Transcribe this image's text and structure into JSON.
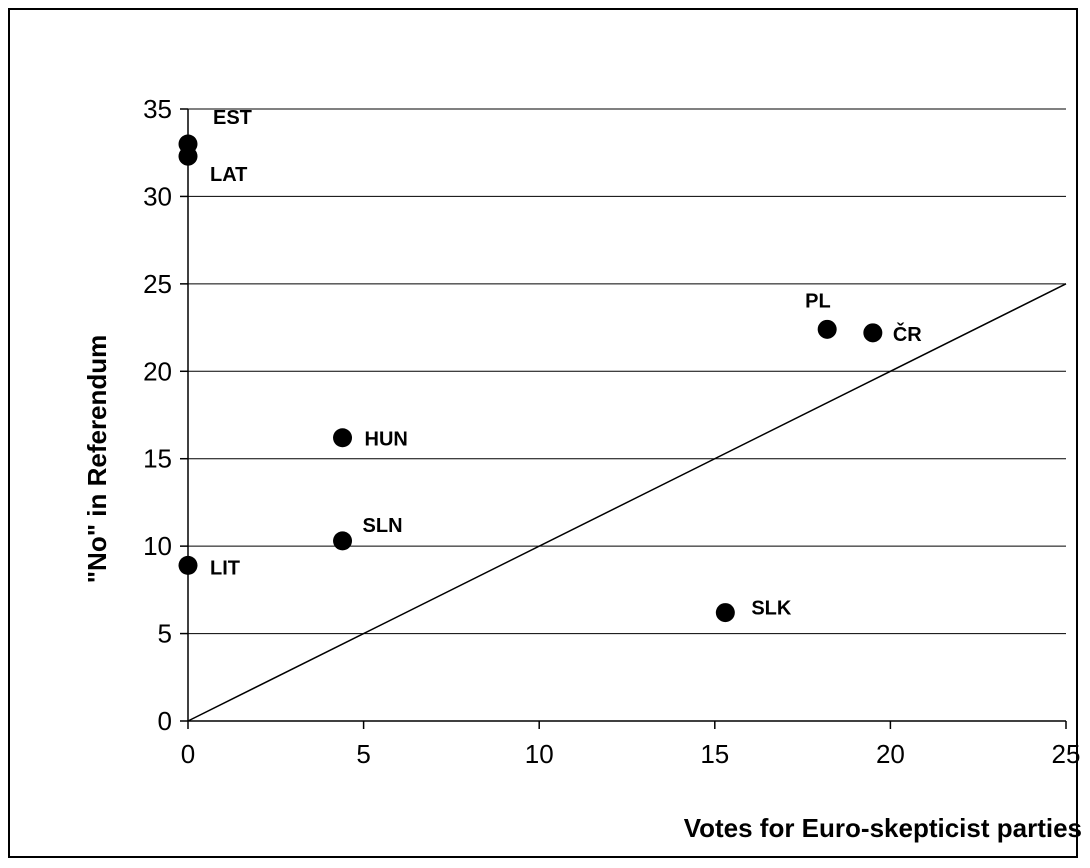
{
  "chart_data": {
    "type": "scatter",
    "title": "",
    "xlabel": "Votes for Euro-skepticist parties",
    "ylabel": "\"No\" in Referendum",
    "xlim": [
      0,
      25
    ],
    "ylim": [
      0,
      35
    ],
    "x_ticks": [
      "0",
      "5",
      "10",
      "15",
      "20",
      "25"
    ],
    "y_ticks": [
      "0",
      "5",
      "10",
      "15",
      "20",
      "25",
      "30",
      "35"
    ],
    "grid": "horizontal",
    "reference_line": {
      "from": [
        0,
        0
      ],
      "to": [
        25,
        25
      ]
    },
    "marker_color": "#000000",
    "points": [
      {
        "label": "EST",
        "x": 0,
        "y": 33.0
      },
      {
        "label": "LAT",
        "x": 0,
        "y": 32.3
      },
      {
        "label": "LIT",
        "x": 0,
        "y": 8.9
      },
      {
        "label": "HUN",
        "x": 4.4,
        "y": 16.2
      },
      {
        "label": "SLN",
        "x": 4.4,
        "y": 10.3
      },
      {
        "label": "PL",
        "x": 18.2,
        "y": 22.4
      },
      {
        "label": "ČR",
        "x": 19.5,
        "y": 22.2
      },
      {
        "label": "SLK",
        "x": 15.3,
        "y": 6.2
      }
    ]
  }
}
